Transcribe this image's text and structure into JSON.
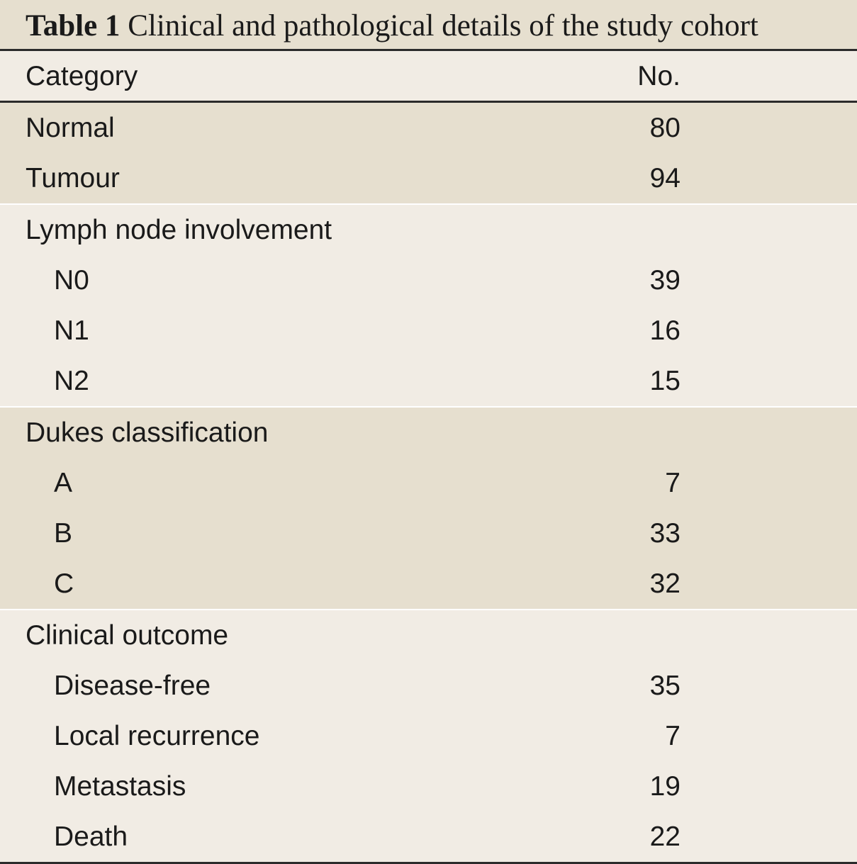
{
  "caption": {
    "label": "Table 1",
    "text": "Clinical and pathological details of the study cohort"
  },
  "header": {
    "category": "Category",
    "count": "No."
  },
  "groups": [
    {
      "rows": [
        {
          "label": "Normal",
          "value": "80"
        },
        {
          "label": "Tumour",
          "value": "94"
        }
      ]
    },
    {
      "title": "Lymph node involvement",
      "rows": [
        {
          "label": "N0",
          "value": "39"
        },
        {
          "label": "N1",
          "value": "16"
        },
        {
          "label": "N2",
          "value": "15"
        }
      ]
    },
    {
      "title": "Dukes classification",
      "rows": [
        {
          "label": "A",
          "value": "7"
        },
        {
          "label": "B",
          "value": "33"
        },
        {
          "label": "C",
          "value": "32"
        }
      ]
    },
    {
      "title": "Clinical outcome",
      "rows": [
        {
          "label": "Disease-free",
          "value": "35"
        },
        {
          "label": "Local recurrence",
          "value": "7"
        },
        {
          "label": "Metastasis",
          "value": "19"
        },
        {
          "label": "Death",
          "value": "22"
        }
      ]
    }
  ]
}
